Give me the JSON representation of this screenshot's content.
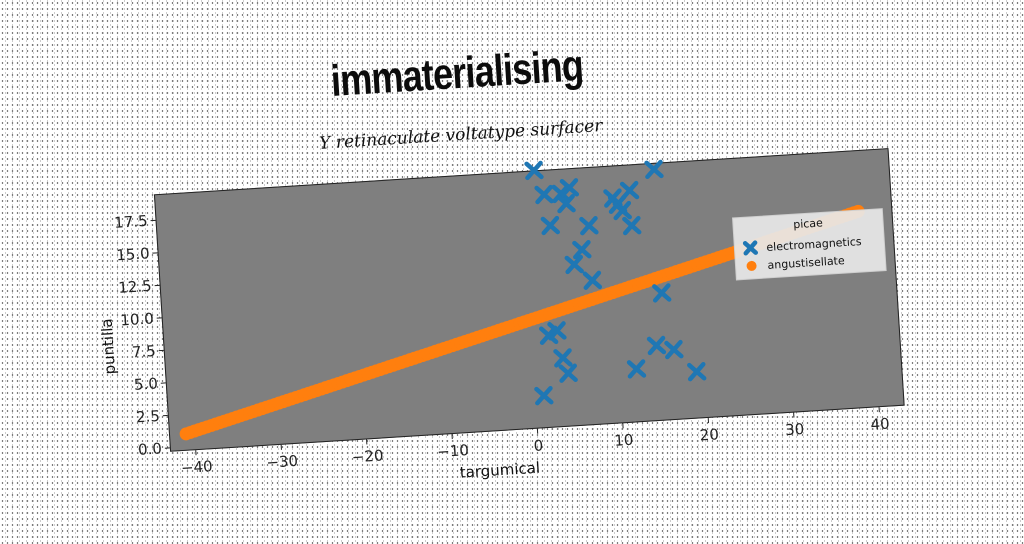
{
  "chart_data": {
    "type": "scatter",
    "title": "immaterialising",
    "subtitle": "Y retinaculate voltatype surfacer",
    "xlabel": "targumical",
    "ylabel": "puntilla",
    "xlim": [
      -43,
      43
    ],
    "ylim": [
      -0.3,
      19.5
    ],
    "xticks": [
      -40,
      -30,
      -20,
      -10,
      0,
      10,
      20,
      30,
      40
    ],
    "xtick_labels": [
      "−40",
      "−30",
      "−20",
      "−10",
      "0",
      "10",
      "20",
      "30",
      "40"
    ],
    "yticks": [
      0.0,
      2.5,
      5.0,
      7.5,
      10.0,
      12.5,
      15.0,
      17.5
    ],
    "ytick_labels": [
      "0.0",
      "2.5",
      "5.0",
      "7.5",
      "10.0",
      "12.5",
      "15.0",
      "17.5"
    ],
    "grid": false,
    "legend": {
      "title": "picae",
      "position": "right"
    },
    "series": [
      {
        "name": "electromagnetics",
        "marker": "x",
        "color": "#1f77b4",
        "points": [
          [
            1.5,
            19.5
          ],
          [
            2.5,
            17.6
          ],
          [
            4.5,
            17.6
          ],
          [
            5.5,
            18.0
          ],
          [
            3.0,
            15.2
          ],
          [
            5.0,
            16.8
          ],
          [
            7.5,
            15.0
          ],
          [
            6.5,
            13.2
          ],
          [
            5.5,
            12.1
          ],
          [
            7.5,
            10.8
          ],
          [
            10.5,
            17.0
          ],
          [
            11.0,
            16.5
          ],
          [
            11.5,
            16.0
          ],
          [
            12.5,
            17.5
          ],
          [
            12.5,
            14.8
          ],
          [
            15.5,
            19.0
          ],
          [
            15.5,
            9.5
          ],
          [
            2.0,
            6.8
          ],
          [
            3.0,
            7.1
          ],
          [
            3.5,
            5.0
          ],
          [
            4.0,
            3.8
          ],
          [
            12.0,
            3.8
          ],
          [
            14.5,
            5.5
          ],
          [
            16.5,
            5.1
          ],
          [
            19.0,
            3.3
          ],
          [
            1.0,
            2.2
          ]
        ]
      },
      {
        "name": "angustisellate",
        "marker": "o",
        "color": "#ff7f0e",
        "line": {
          "x_start": -41,
          "x_end": 39,
          "y_start": 1.0,
          "y_end": 14.8,
          "count": 160
        }
      }
    ]
  }
}
